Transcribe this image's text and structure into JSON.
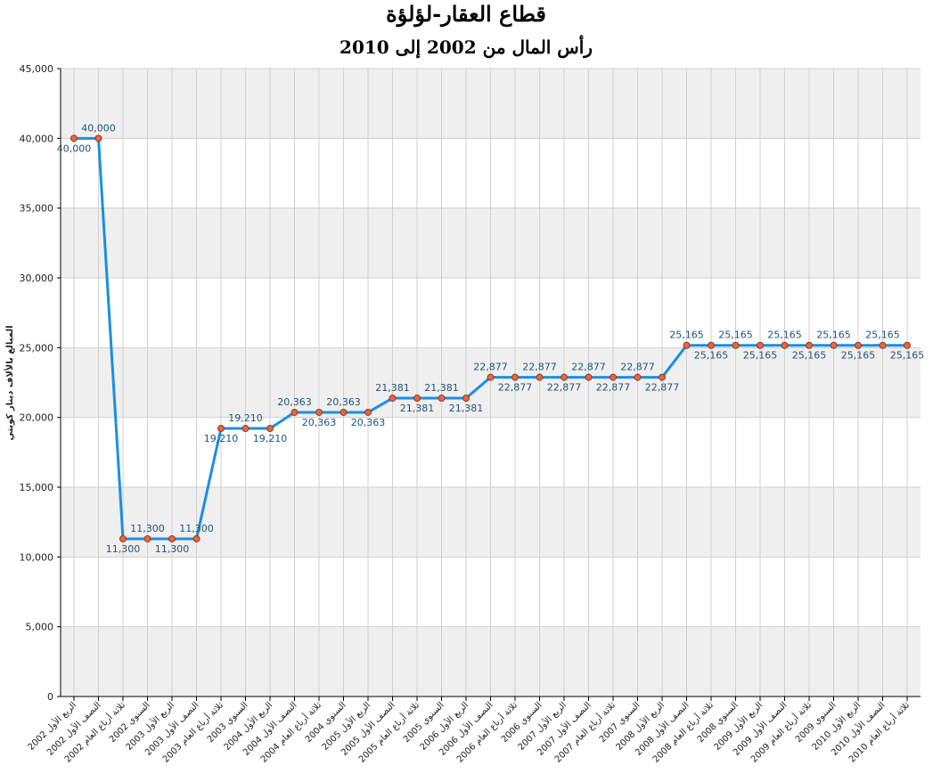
{
  "chart_data": {
    "type": "line",
    "title": "قطاع العقار-لؤلؤة",
    "subtitle": "رأس المال من 2002 إلى 2010",
    "y_label": "المبالغ بالألاف دينار كويتي",
    "categories": [
      "الربع الأول 2002",
      "النصف الأول 2002",
      "ثلاثة أرباع العام 2002",
      "السنوي 2002",
      "الربع الأول 2003",
      "النصف الأول 2003",
      "ثلاثة أرباع العام 2003",
      "السنوي 2003",
      "الربع الأول 2004",
      "النصف الأول 2004",
      "ثلاثة أرباع العام 2004",
      "السنوي 2004",
      "الربع الأول 2005",
      "النصف الأول 2005",
      "ثلاثة أرباع العام 2005",
      "السنوي 2005",
      "الربع الأول 2006",
      "النصف الأول 2006",
      "ثلاثة أرباع العام 2006",
      "السنوي 2006",
      "الربع الأول 2007",
      "النصف الأول 2007",
      "ثلاثة أرباع العام 2007",
      "السنوي 2007",
      "الربع الأول 2008",
      "النصف الأول 2008",
      "ثلاثة أرباع العام 2008",
      "السنوي 2008",
      "الربع الأول 2009",
      "النصف الأول 2009",
      "ثلاثة أرباع العام 2009",
      "السنوي 2009",
      "الربع الأول 2010",
      "النصف الأول 2010",
      "ثلاثة أرباع العام 2010"
    ],
    "values": [
      40000,
      40000,
      11300,
      11300,
      11300,
      11300,
      19210,
      19210,
      19210,
      20363,
      20363,
      20363,
      20363,
      21381,
      21381,
      21381,
      21381,
      22877,
      22877,
      22877,
      22877,
      22877,
      22877,
      22877,
      22877,
      25165,
      25165,
      25165,
      25165,
      25165,
      25165,
      25165,
      25165,
      25165,
      25165
    ],
    "value_labels": [
      "40,000",
      "40,000",
      "11,300",
      "11,300",
      "11,300",
      "11,300",
      "19,210",
      "19,210",
      "19,210",
      "20,363",
      "20,363",
      "20,363",
      "20,363",
      "21,381",
      "21,381",
      "21,381",
      "21,381",
      "22,877",
      "22,877",
      "22,877",
      "22,877",
      "22,877",
      "22,877",
      "22,877",
      "22,877",
      "25,165",
      "25,165",
      "25,165",
      "25,165",
      "25,165",
      "25,165",
      "25,165",
      "25,165",
      "25,165",
      "25,165"
    ],
    "color": "#1a8fe3",
    "marker_color": "#f0643c",
    "ylim": [
      0,
      45000
    ],
    "yticks": [
      0,
      {
        "value": 5000,
        "label": "5,000"
      },
      {
        "value": 10000,
        "label": "10,000"
      },
      {
        "value": 15000,
        "label": "15,000"
      },
      {
        "value": 20000,
        "label": "20,000"
      },
      {
        "value": 25000,
        "label": "25,000"
      },
      {
        "value": 30000,
        "label": "30,000"
      },
      {
        "value": 35000,
        "label": "35,000"
      },
      {
        "value": 40000,
        "label": "40,000"
      },
      {
        "value": 45000,
        "label": "45,000"
      }
    ],
    "grid": true
  }
}
